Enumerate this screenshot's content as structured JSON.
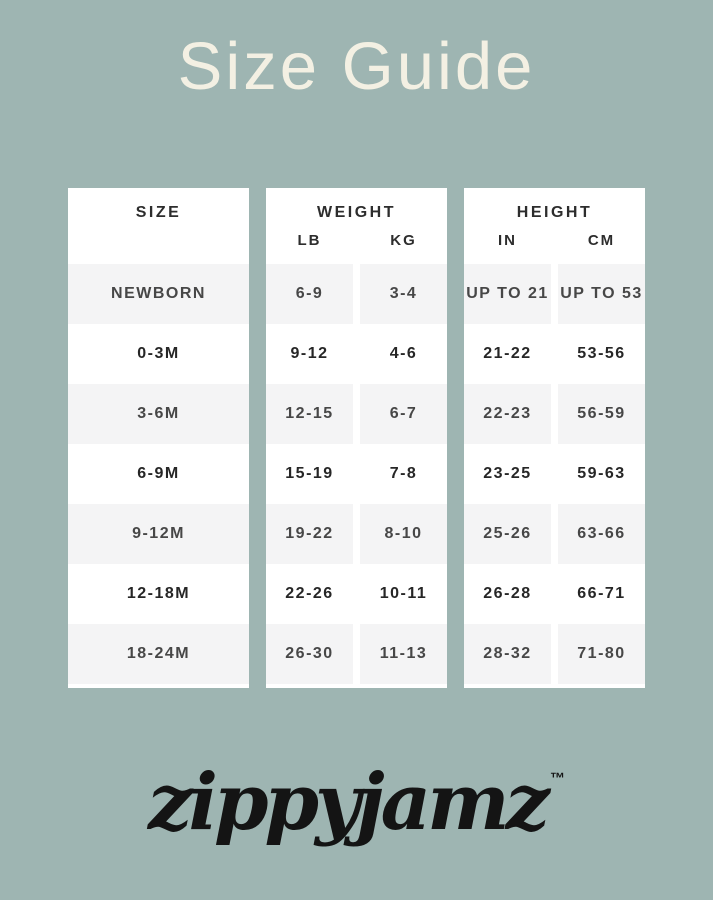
{
  "page": {
    "title": "Size Guide"
  },
  "colors": {
    "background": "#9eb5b2",
    "panel": "#ffffff",
    "row_alt": "#f4f4f5",
    "title_text": "#f3f0e3",
    "table_text": "#262626",
    "logo_text_color": "#141414"
  },
  "tables": {
    "size": {
      "header": "SIZE",
      "rows": [
        "NEWBORN",
        "0-3M",
        "3-6M",
        "6-9M",
        "9-12M",
        "12-18M",
        "18-24M"
      ]
    },
    "weight": {
      "header": "WEIGHT",
      "subheaders": [
        "LB",
        "KG"
      ],
      "rows": [
        [
          "6-9",
          "3-4"
        ],
        [
          "9-12",
          "4-6"
        ],
        [
          "12-15",
          "6-7"
        ],
        [
          "15-19",
          "7-8"
        ],
        [
          "19-22",
          "8-10"
        ],
        [
          "22-26",
          "10-11"
        ],
        [
          "26-30",
          "11-13"
        ]
      ]
    },
    "height": {
      "header": "HEIGHT",
      "subheaders": [
        "IN",
        "CM"
      ],
      "rows": [
        [
          "UP TO 21",
          "UP TO 53"
        ],
        [
          "21-22",
          "53-56"
        ],
        [
          "22-23",
          "56-59"
        ],
        [
          "23-25",
          "59-63"
        ],
        [
          "25-26",
          "63-66"
        ],
        [
          "26-28",
          "66-71"
        ],
        [
          "28-32",
          "71-80"
        ]
      ]
    }
  },
  "brand": {
    "logo_text": "zippyjamz",
    "trademark": "™"
  },
  "chart_data": {
    "type": "table",
    "title": "Size Guide",
    "columns": [
      "SIZE",
      "WEIGHT LB",
      "WEIGHT KG",
      "HEIGHT IN",
      "HEIGHT CM"
    ],
    "rows": [
      [
        "NEWBORN",
        "6-9",
        "3-4",
        "UP TO 21",
        "UP TO 53"
      ],
      [
        "0-3M",
        "9-12",
        "4-6",
        "21-22",
        "53-56"
      ],
      [
        "3-6M",
        "12-15",
        "6-7",
        "22-23",
        "56-59"
      ],
      [
        "6-9M",
        "15-19",
        "7-8",
        "23-25",
        "59-63"
      ],
      [
        "9-12M",
        "19-22",
        "8-10",
        "25-26",
        "63-66"
      ],
      [
        "12-18M",
        "22-26",
        "10-11",
        "26-28",
        "66-71"
      ],
      [
        "18-24M",
        "26-30",
        "11-13",
        "28-32",
        "71-80"
      ]
    ]
  }
}
